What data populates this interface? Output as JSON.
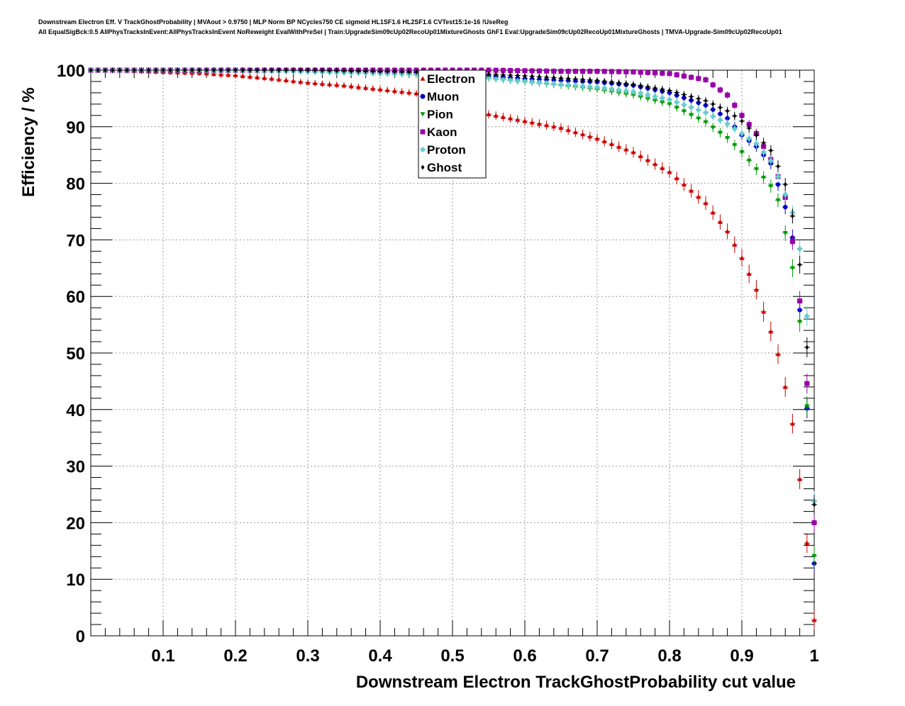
{
  "chart_data": {
    "type": "scatter",
    "title": "Downstream Electron Eff. V TrackGhostProbability | MVAout > 0.9750 | MLP Norm BP NCycles750 CE sigmoid HL1SF1.6 HL2SF1.6 CVTest15:1e-16 !UseReg",
    "subtitle": "All EqualSigBck:0.5 AllPhysTracksInEvent:AllPhysTracksInEvent NoReweight EvalWithPreSel | Train:UpgradeSim09cUp02RecoUp01MixtureGhosts GhF1 Eval:UpgradeSim09cUp02RecoUp01MixtureGhosts | TMVA-Upgrade-Sim09cUp02RecoUp01",
    "xlabel": "Downstream Electron TrackGhostProbability cut value",
    "ylabel": "Efficiency / %",
    "xlim": [
      0,
      1
    ],
    "ylim": [
      0,
      100
    ],
    "x_ticks": [
      "0.1",
      "0.2",
      "0.3",
      "0.4",
      "0.5",
      "0.6",
      "0.7",
      "0.8",
      "0.9",
      "1"
    ],
    "y_ticks": [
      "0",
      "10",
      "20",
      "30",
      "40",
      "50",
      "60",
      "70",
      "80",
      "90",
      "100"
    ],
    "grid": true,
    "legend_position": "top-center",
    "series": [
      {
        "name": "Electron",
        "color": "#cc0000",
        "marker": "triangle-up",
        "points": [
          [
            0.0,
            100.0
          ],
          [
            0.05,
            99.9
          ],
          [
            0.1,
            99.7
          ],
          [
            0.15,
            99.5
          ],
          [
            0.2,
            99.1
          ],
          [
            0.25,
            98.5
          ],
          [
            0.3,
            97.8
          ],
          [
            0.35,
            97.3
          ],
          [
            0.4,
            96.6
          ],
          [
            0.45,
            95.9
          ],
          [
            0.5,
            94.8
          ],
          [
            0.55,
            92.2
          ],
          [
            0.6,
            91.0
          ],
          [
            0.65,
            89.8
          ],
          [
            0.7,
            87.9
          ],
          [
            0.75,
            85.5
          ],
          [
            0.8,
            82.0
          ],
          [
            0.85,
            76.5
          ],
          [
            0.88,
            71.5
          ],
          [
            0.9,
            66.8
          ],
          [
            0.91,
            64.0
          ],
          [
            0.92,
            61.2
          ],
          [
            0.93,
            57.3
          ],
          [
            0.94,
            53.8
          ],
          [
            0.95,
            49.8
          ],
          [
            0.96,
            44.0
          ],
          [
            0.97,
            37.5
          ],
          [
            0.98,
            27.7
          ],
          [
            0.99,
            16.4
          ],
          [
            1.0,
            2.8
          ]
        ]
      },
      {
        "name": "Muon",
        "color": "#0000cc",
        "marker": "circle",
        "points": [
          [
            0.0,
            100.0
          ],
          [
            0.1,
            100.0
          ],
          [
            0.2,
            100.0
          ],
          [
            0.3,
            99.9
          ],
          [
            0.4,
            99.7
          ],
          [
            0.5,
            99.3
          ],
          [
            0.55,
            99.0
          ],
          [
            0.6,
            98.5
          ],
          [
            0.65,
            98.2
          ],
          [
            0.7,
            97.9
          ],
          [
            0.75,
            97.3
          ],
          [
            0.8,
            96.0
          ],
          [
            0.85,
            93.8
          ],
          [
            0.88,
            91.5
          ],
          [
            0.9,
            88.5
          ],
          [
            0.92,
            86.5
          ],
          [
            0.94,
            83.5
          ],
          [
            0.95,
            79.8
          ],
          [
            0.96,
            75.8
          ],
          [
            0.97,
            70.4
          ],
          [
            0.98,
            57.6
          ],
          [
            0.99,
            40.2
          ],
          [
            1.0,
            12.8
          ]
        ]
      },
      {
        "name": "Pion",
        "color": "#009900",
        "marker": "triangle-down",
        "points": [
          [
            0.0,
            100.0
          ],
          [
            0.1,
            100.0
          ],
          [
            0.2,
            99.9
          ],
          [
            0.3,
            99.8
          ],
          [
            0.4,
            99.5
          ],
          [
            0.5,
            98.8
          ],
          [
            0.55,
            98.5
          ],
          [
            0.6,
            97.9
          ],
          [
            0.65,
            97.3
          ],
          [
            0.7,
            96.6
          ],
          [
            0.75,
            95.6
          ],
          [
            0.8,
            94.0
          ],
          [
            0.85,
            90.8
          ],
          [
            0.88,
            88.0
          ],
          [
            0.9,
            85.5
          ],
          [
            0.92,
            82.5
          ],
          [
            0.94,
            79.5
          ],
          [
            0.95,
            77.0
          ],
          [
            0.96,
            71.2
          ],
          [
            0.97,
            65.0
          ],
          [
            0.98,
            55.5
          ],
          [
            0.99,
            40.6
          ],
          [
            1.0,
            14.1
          ]
        ]
      },
      {
        "name": "Kaon",
        "color": "#9900aa",
        "marker": "square",
        "points": [
          [
            0.0,
            100.0
          ],
          [
            0.1,
            100.0
          ],
          [
            0.2,
            100.0
          ],
          [
            0.3,
            100.0
          ],
          [
            0.4,
            100.0
          ],
          [
            0.5,
            100.0
          ],
          [
            0.55,
            100.0
          ],
          [
            0.6,
            99.9
          ],
          [
            0.65,
            99.8
          ],
          [
            0.7,
            99.8
          ],
          [
            0.75,
            99.7
          ],
          [
            0.8,
            99.4
          ],
          [
            0.85,
            98.3
          ],
          [
            0.88,
            95.6
          ],
          [
            0.9,
            92.0
          ],
          [
            0.92,
            88.8
          ],
          [
            0.94,
            84.2
          ],
          [
            0.95,
            81.2
          ],
          [
            0.96,
            77.5
          ],
          [
            0.97,
            69.7
          ],
          [
            0.98,
            59.2
          ],
          [
            0.99,
            44.6
          ],
          [
            1.0,
            20.0
          ]
        ]
      },
      {
        "name": "Proton",
        "color": "#66cccc",
        "marker": "cross",
        "points": [
          [
            0.0,
            100.0
          ],
          [
            0.1,
            100.0
          ],
          [
            0.2,
            99.9
          ],
          [
            0.3,
            99.7
          ],
          [
            0.4,
            99.4
          ],
          [
            0.5,
            99.1
          ],
          [
            0.55,
            98.6
          ],
          [
            0.6,
            98.0
          ],
          [
            0.65,
            97.5
          ],
          [
            0.7,
            97.0
          ],
          [
            0.75,
            96.2
          ],
          [
            0.8,
            94.8
          ],
          [
            0.85,
            92.5
          ],
          [
            0.88,
            90.5
          ],
          [
            0.9,
            88.8
          ],
          [
            0.92,
            87.0
          ],
          [
            0.94,
            84.0
          ],
          [
            0.95,
            81.2
          ],
          [
            0.96,
            78.0
          ],
          [
            0.97,
            74.8
          ],
          [
            0.98,
            68.4
          ],
          [
            0.99,
            56.5
          ],
          [
            1.0,
            23.8
          ]
        ]
      },
      {
        "name": "Ghost",
        "color": "#000000",
        "marker": "diamond",
        "points": [
          [
            0.0,
            100.0
          ],
          [
            0.1,
            100.0
          ],
          [
            0.2,
            100.0
          ],
          [
            0.3,
            100.0
          ],
          [
            0.4,
            99.8
          ],
          [
            0.5,
            99.6
          ],
          [
            0.55,
            99.3
          ],
          [
            0.6,
            99.0
          ],
          [
            0.65,
            98.6
          ],
          [
            0.7,
            98.2
          ],
          [
            0.75,
            97.5
          ],
          [
            0.8,
            96.4
          ],
          [
            0.85,
            94.6
          ],
          [
            0.88,
            92.8
          ],
          [
            0.9,
            91.0
          ],
          [
            0.92,
            88.5
          ],
          [
            0.94,
            85.8
          ],
          [
            0.95,
            83.0
          ],
          [
            0.96,
            79.8
          ],
          [
            0.97,
            74.2
          ],
          [
            0.98,
            65.6
          ],
          [
            0.99,
            51.0
          ],
          [
            1.0,
            23.2
          ]
        ]
      }
    ]
  }
}
